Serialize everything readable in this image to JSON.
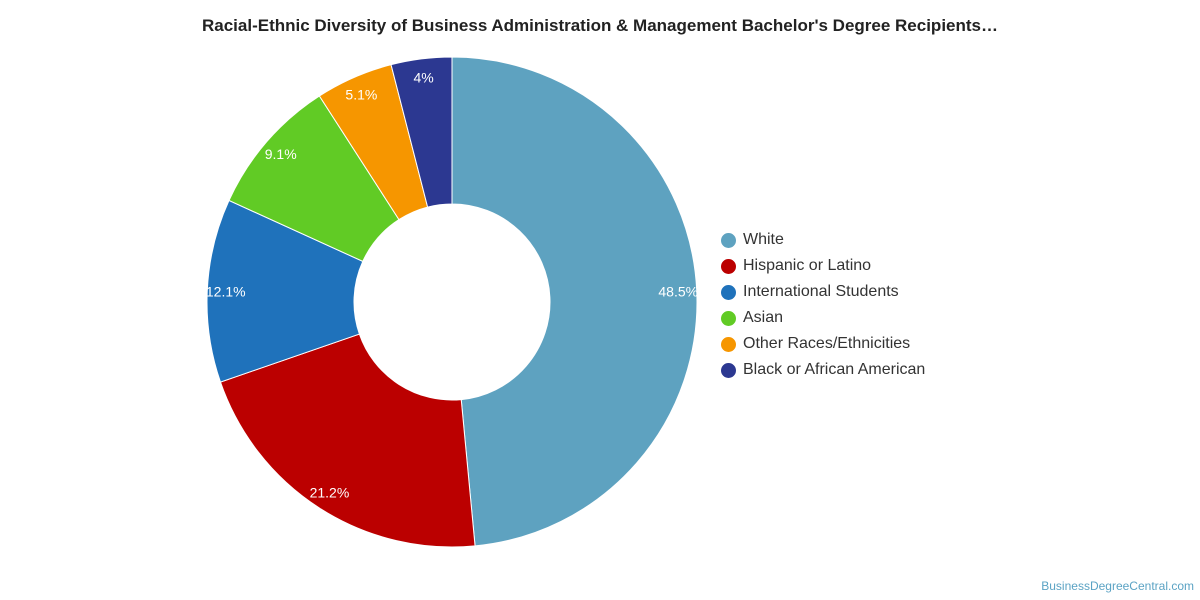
{
  "chart_data": {
    "type": "pie",
    "title": "Racial-Ethnic Diversity of Business Administration & Management Bachelor's Degree Recipients…",
    "slices": [
      {
        "name": "White",
        "value": 48.5,
        "label": "48.5%",
        "color": "#5ea2c0"
      },
      {
        "name": "Hispanic or Latino",
        "value": 21.2,
        "label": "21.2%",
        "color": "#bb0000"
      },
      {
        "name": "International Students",
        "value": 12.1,
        "label": "12.1%",
        "color": "#1f72bb"
      },
      {
        "name": "Asian",
        "value": 9.1,
        "label": "9.1%",
        "color": "#61cb25"
      },
      {
        "name": "Other Races/Ethnicities",
        "value": 5.1,
        "label": "5.1%",
        "color": "#f69600"
      },
      {
        "name": "Black or African American",
        "value": 4.0,
        "label": "4%",
        "color": "#2c3891"
      }
    ],
    "donut": true,
    "legend_position": "right"
  },
  "footer": {
    "credit": "BusinessDegreeCentral.com"
  }
}
